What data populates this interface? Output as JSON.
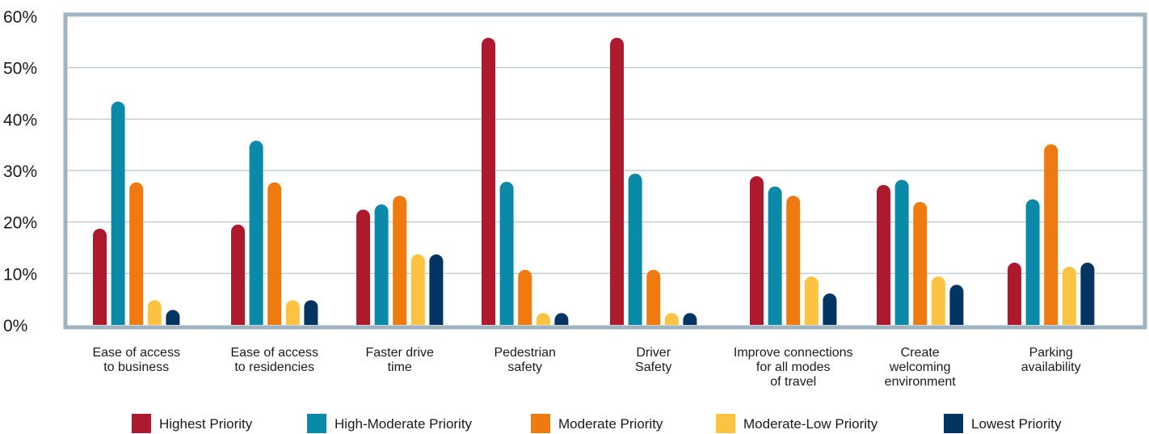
{
  "chart_data": {
    "type": "bar",
    "title": "",
    "xlabel": "",
    "ylabel": "",
    "ylim": [
      0,
      60
    ],
    "ytick_labels": [
      "0%",
      "10%",
      "20%",
      "30%",
      "40%",
      "50%",
      "60%"
    ],
    "ytick_values": [
      0,
      10,
      20,
      30,
      40,
      50,
      60
    ],
    "grid": true,
    "legend_position": "bottom",
    "categories": [
      [
        "Ease of access",
        "to business"
      ],
      [
        "Ease of access",
        "to residencies"
      ],
      [
        "Faster drive",
        "time"
      ],
      [
        "Pedestrian",
        "safety"
      ],
      [
        "Driver",
        "Safety"
      ],
      [
        "Improve connections",
        "for all modes",
        "of travel"
      ],
      [
        "Create",
        "welcoming",
        "environment"
      ],
      [
        "Parking",
        "availability"
      ]
    ],
    "series": [
      {
        "name": "Highest Priority",
        "color": "#ad1a2e",
        "values": [
          18.7,
          19.5,
          22.4,
          55.8,
          55.8,
          28.9,
          27.2,
          12.1
        ]
      },
      {
        "name": "High-Moderate Priority",
        "color": "#0a8aa8",
        "values": [
          43.4,
          35.8,
          23.4,
          27.8,
          29.4,
          26.9,
          28.2,
          24.4
        ]
      },
      {
        "name": "Moderate Priority",
        "color": "#ee7a10",
        "values": [
          27.7,
          27.7,
          25.1,
          10.7,
          10.7,
          25.1,
          23.9,
          35.1
        ]
      },
      {
        "name": "Moderate-Low Priority",
        "color": "#fcc342",
        "values": [
          4.8,
          4.8,
          13.7,
          2.3,
          2.3,
          9.4,
          9.4,
          11.3
        ]
      },
      {
        "name": "Lowest Priority",
        "color": "#043562",
        "values": [
          2.9,
          4.8,
          13.7,
          2.3,
          2.3,
          6.1,
          7.8,
          12.1
        ]
      }
    ],
    "frame_color": "#9fb3c0",
    "grid_color": "#b4c3cc"
  }
}
